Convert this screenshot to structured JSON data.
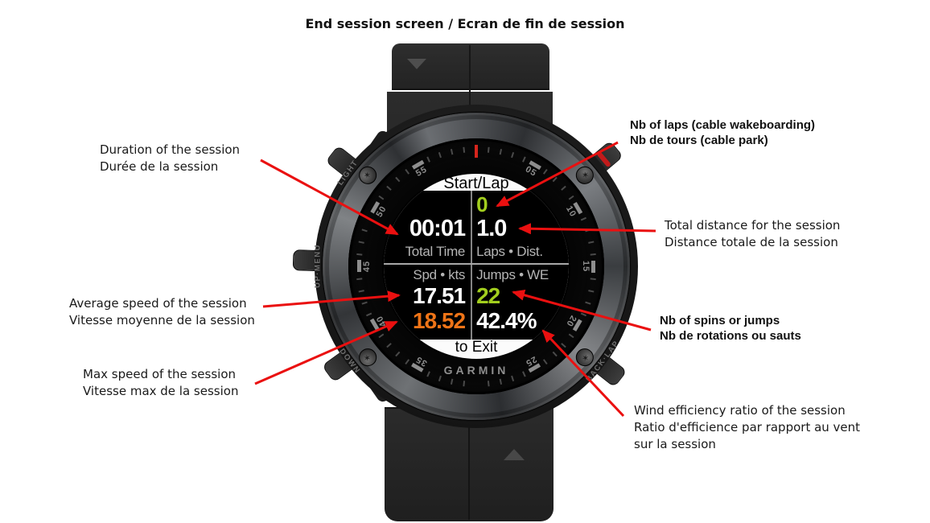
{
  "title": "End session screen / Ecran de fin de session",
  "watch": {
    "brand": "GARMIN",
    "screen": {
      "top_hint": "Start/Lap",
      "bottom_hint": "to Exit",
      "fields": {
        "laps": "0",
        "total_time": "00:01",
        "total_time_label": "Total Time",
        "distance": "1.0",
        "laps_dist_label": "Laps • Dist.",
        "spd_label": "Spd • kts",
        "jumps_we_label": "Jumps • WE",
        "avg_speed": "17.51",
        "jumps": "22",
        "max_speed": "18.52",
        "wind_efficiency": "42.4%"
      },
      "colors": {
        "value_green": "#a2ce1e",
        "value_orange": "#ef7417",
        "value_white": "#ffffff",
        "label_gray": "#b5b5b5"
      }
    },
    "case_buttons": {
      "light": "LIGHT",
      "up_menu": "UP·MENU",
      "down": "DOWN",
      "back_lap": "BACK·LAP"
    },
    "dial": {
      "m05": "05",
      "m10": "10",
      "m15": "15",
      "m20": "20",
      "m25": "25",
      "m35": "35",
      "m40": "40",
      "m45": "45",
      "m50": "50",
      "m55": "55"
    }
  },
  "annotations": {
    "duration": {
      "en": "Duration of the session",
      "fr": "Durée de la session"
    },
    "laps": {
      "en": "Nb of laps (cable wakeboarding)",
      "fr": "Nb de tours (cable park)"
    },
    "distance": {
      "en": "Total distance for the session",
      "fr": "Distance totale de la session"
    },
    "avg_speed": {
      "en": "Average speed of the session",
      "fr": "Vitesse moyenne de la session"
    },
    "max_speed": {
      "en": "Max speed of the session",
      "fr": "Vitesse max de la session"
    },
    "jumps": {
      "en": "Nb of spins or jumps",
      "fr": "Nb de rotations ou sauts"
    },
    "wind": {
      "en": "Wind efficiency ratio of the session",
      "fr": "Ratio d'efficience par rapport au vent",
      "fr2": "sur la session"
    }
  },
  "arrows": {
    "color": "#ea1010"
  }
}
